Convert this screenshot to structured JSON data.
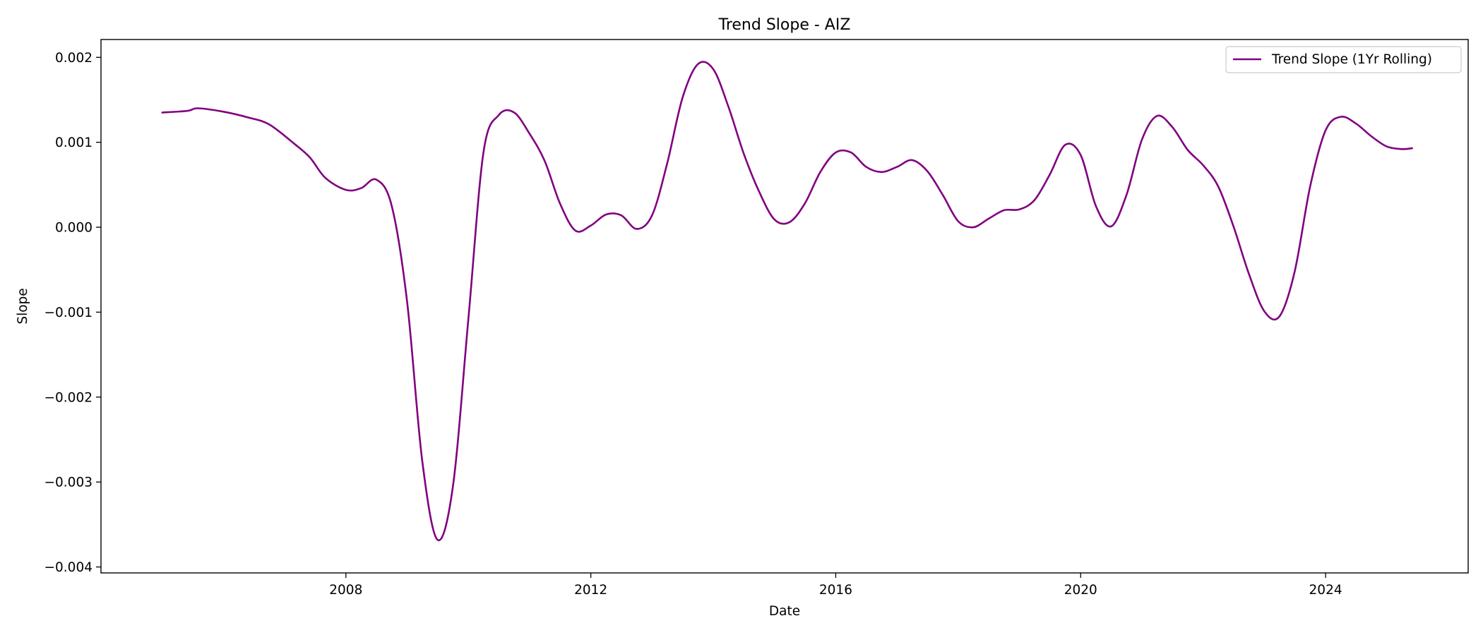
{
  "chart_data": {
    "type": "line",
    "title": "Trend Slope - AIZ",
    "xlabel": "Date",
    "ylabel": "Slope",
    "x_ticks": [
      "2008",
      "2012",
      "2016",
      "2020",
      "2024"
    ],
    "y_ticks": [
      "0.002",
      "0.001",
      "0.000",
      "−0.001",
      "−0.002",
      "−0.003",
      "−0.004"
    ],
    "xlim": [
      "2004-01-01",
      "2026-05-01"
    ],
    "ylim": [
      -0.00407,
      0.00221
    ],
    "grid": false,
    "legend_position": "top-right",
    "series": [
      {
        "name": "Trend Slope (1Yr Rolling)",
        "color": "#800080",
        "x": [
          "2005-01-01",
          "2005-06-01",
          "2005-08-01",
          "2006-01-01",
          "2006-06-01",
          "2006-10-01",
          "2007-03-01",
          "2007-06-01",
          "2007-09-01",
          "2008-01-01",
          "2008-04-01",
          "2008-07-01",
          "2008-10-01",
          "2009-01-01",
          "2009-04-01",
          "2009-07-01",
          "2009-10-01",
          "2010-01-01",
          "2010-04-01",
          "2010-07-01",
          "2010-10-01",
          "2011-01-01",
          "2011-04-01",
          "2011-07-01",
          "2011-10-01",
          "2012-01-01",
          "2012-04-01",
          "2012-07-01",
          "2012-10-01",
          "2013-01-01",
          "2013-04-01",
          "2013-07-01",
          "2013-10-01",
          "2014-01-01",
          "2014-04-01",
          "2014-07-01",
          "2014-10-01",
          "2015-01-01",
          "2015-04-01",
          "2015-07-01",
          "2015-10-01",
          "2016-01-01",
          "2016-04-01",
          "2016-07-01",
          "2016-10-01",
          "2017-01-01",
          "2017-04-01",
          "2017-07-01",
          "2017-10-01",
          "2018-01-01",
          "2018-04-01",
          "2018-07-01",
          "2018-10-01",
          "2019-01-01",
          "2019-04-01",
          "2019-07-01",
          "2019-10-01",
          "2020-01-01",
          "2020-04-01",
          "2020-07-01",
          "2020-10-01",
          "2021-01-01",
          "2021-04-01",
          "2021-07-01",
          "2021-10-01",
          "2022-01-01",
          "2022-04-01",
          "2022-07-01",
          "2022-10-01",
          "2023-01-01",
          "2023-04-01",
          "2023-07-01",
          "2023-10-01",
          "2024-01-01",
          "2024-04-01",
          "2024-07-01",
          "2024-10-01",
          "2025-01-01",
          "2025-04-01",
          "2025-06-01"
        ],
        "y": [
          0.00135,
          0.00137,
          0.0014,
          0.00136,
          0.00129,
          0.00121,
          0.00098,
          0.00082,
          0.00058,
          0.00044,
          0.00046,
          0.00056,
          0.00025,
          -0.00088,
          -0.00275,
          -0.00368,
          -0.00305,
          -0.00108,
          0.00088,
          0.00132,
          0.00135,
          0.0011,
          0.00078,
          0.00028,
          -4e-05,
          2e-05,
          0.00015,
          0.00014,
          -2e-05,
          0.00014,
          0.00075,
          0.00152,
          0.00192,
          0.00186,
          0.00142,
          0.00087,
          0.00042,
          9e-05,
          6e-05,
          0.00028,
          0.00065,
          0.00088,
          0.00088,
          0.00071,
          0.00065,
          0.00071,
          0.00079,
          0.00066,
          0.00038,
          7e-05,
          0.0,
          0.0001,
          0.0002,
          0.00021,
          0.00032,
          0.00062,
          0.00097,
          0.00085,
          0.00025,
          1e-05,
          0.00038,
          0.00103,
          0.00131,
          0.00118,
          0.00091,
          0.00073,
          0.00048,
          1e-05,
          -0.00055,
          -0.00099,
          -0.00105,
          -0.00052,
          0.00048,
          0.00114,
          0.0013,
          0.00122,
          0.00107,
          0.00095,
          0.00092,
          0.00093
        ]
      }
    ]
  }
}
